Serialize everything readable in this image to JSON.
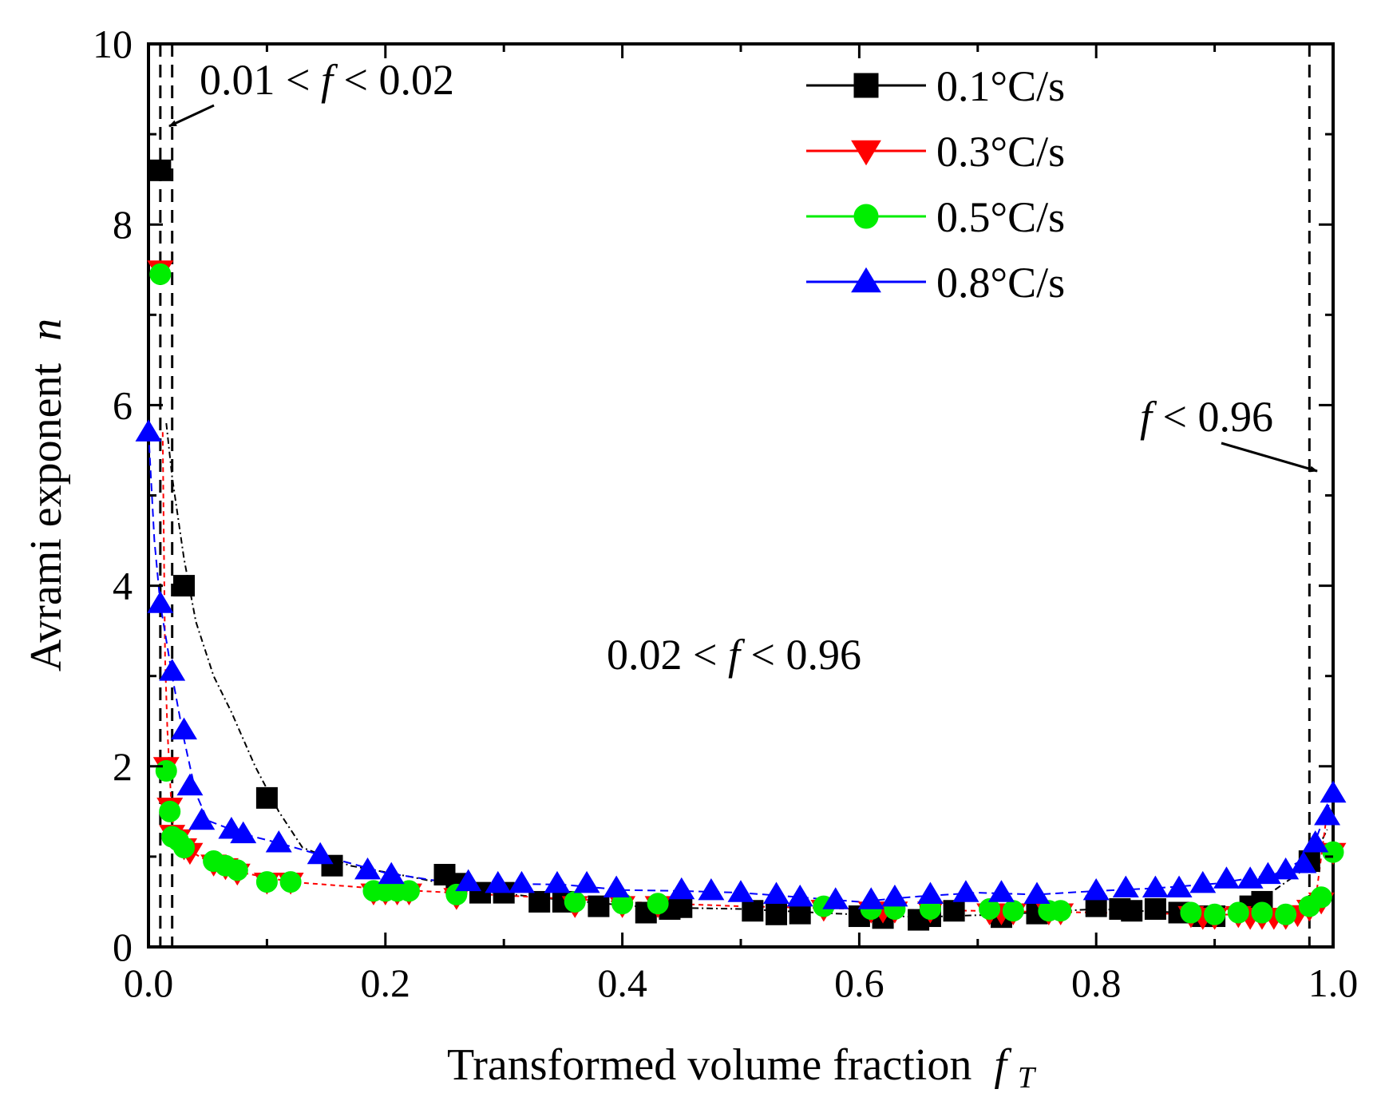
{
  "chart_data": {
    "type": "scatter",
    "xlabel": "Transformed volume fraction",
    "xlabel_symbol": "f",
    "xlabel_sub": "T",
    "ylabel": "Avrami exponent",
    "ylabel_symbol": "n",
    "xlim": [
      0.0,
      1.0
    ],
    "ylim": [
      0,
      10
    ],
    "x_ticks": [
      "0.0",
      "0.2",
      "0.4",
      "0.6",
      "0.8",
      "1.0"
    ],
    "y_ticks": [
      "0",
      "2",
      "4",
      "6",
      "8",
      "10"
    ],
    "grid": false,
    "legend_position": "top-right",
    "vlines": [
      0.01,
      0.02,
      0.98
    ],
    "annotations": [
      {
        "id": "a1",
        "pre": "0.01 < ",
        "sym": "f",
        "post": " < 0.02"
      },
      {
        "id": "a2",
        "pre": "0.02 < ",
        "sym": "f",
        "post": " < 0.96"
      },
      {
        "id": "a3",
        "pre": "",
        "sym": "f",
        "post": " < 0.96"
      }
    ],
    "series": [
      {
        "name": "0.1°C/s",
        "color": "#000000",
        "marker": "square",
        "points": [
          [
            0.01,
            8.6
          ],
          [
            0.03,
            4.0
          ],
          [
            0.1,
            1.65
          ],
          [
            0.155,
            0.9
          ],
          [
            0.25,
            0.8
          ],
          [
            0.26,
            0.7
          ],
          [
            0.28,
            0.6
          ],
          [
            0.3,
            0.6
          ],
          [
            0.33,
            0.5
          ],
          [
            0.35,
            0.5
          ],
          [
            0.38,
            0.45
          ],
          [
            0.42,
            0.38
          ],
          [
            0.44,
            0.42
          ],
          [
            0.45,
            0.44
          ],
          [
            0.51,
            0.4
          ],
          [
            0.53,
            0.36
          ],
          [
            0.55,
            0.37
          ],
          [
            0.6,
            0.34
          ],
          [
            0.62,
            0.32
          ],
          [
            0.65,
            0.3
          ],
          [
            0.66,
            0.34
          ],
          [
            0.68,
            0.4
          ],
          [
            0.72,
            0.33
          ],
          [
            0.75,
            0.37
          ],
          [
            0.8,
            0.45
          ],
          [
            0.82,
            0.42
          ],
          [
            0.83,
            0.4
          ],
          [
            0.85,
            0.42
          ],
          [
            0.87,
            0.38
          ],
          [
            0.89,
            0.34
          ],
          [
            0.9,
            0.34
          ],
          [
            0.93,
            0.45
          ],
          [
            0.94,
            0.5
          ],
          [
            0.98,
            0.95
          ]
        ],
        "curve": [
          [
            0.015,
            5.8
          ],
          [
            0.02,
            5.2
          ],
          [
            0.03,
            4.3
          ],
          [
            0.04,
            3.6
          ],
          [
            0.055,
            3.0
          ],
          [
            0.07,
            2.6
          ],
          [
            0.09,
            2.0
          ],
          [
            0.11,
            1.5
          ],
          [
            0.13,
            1.1
          ],
          [
            0.17,
            0.9
          ],
          [
            0.22,
            0.78
          ],
          [
            0.28,
            0.62
          ],
          [
            0.35,
            0.52
          ],
          [
            0.42,
            0.44
          ],
          [
            0.5,
            0.42
          ],
          [
            0.58,
            0.37
          ],
          [
            0.65,
            0.33
          ],
          [
            0.72,
            0.36
          ],
          [
            0.8,
            0.42
          ],
          [
            0.87,
            0.38
          ],
          [
            0.93,
            0.44
          ],
          [
            0.98,
            0.9
          ],
          [
            0.995,
            1.3
          ]
        ]
      },
      {
        "name": "0.3°C/s",
        "color": "#ff0000",
        "marker": "triangle-down",
        "points": [
          [
            0.01,
            7.5
          ],
          [
            0.015,
            2.0
          ],
          [
            0.018,
            1.55
          ],
          [
            0.02,
            1.25
          ],
          [
            0.025,
            1.2
          ],
          [
            0.03,
            1.1
          ],
          [
            0.035,
            1.05
          ],
          [
            0.055,
            0.92
          ],
          [
            0.065,
            0.88
          ],
          [
            0.075,
            0.82
          ],
          [
            0.1,
            0.72
          ],
          [
            0.12,
            0.72
          ],
          [
            0.19,
            0.6
          ],
          [
            0.2,
            0.6
          ],
          [
            0.21,
            0.6
          ],
          [
            0.22,
            0.6
          ],
          [
            0.26,
            0.55
          ],
          [
            0.36,
            0.46
          ],
          [
            0.4,
            0.46
          ],
          [
            0.43,
            0.46
          ],
          [
            0.57,
            0.42
          ],
          [
            0.61,
            0.4
          ],
          [
            0.62,
            0.4
          ],
          [
            0.63,
            0.4
          ],
          [
            0.66,
            0.4
          ],
          [
            0.71,
            0.38
          ],
          [
            0.72,
            0.38
          ],
          [
            0.73,
            0.38
          ],
          [
            0.76,
            0.38
          ],
          [
            0.77,
            0.38
          ],
          [
            0.88,
            0.35
          ],
          [
            0.89,
            0.33
          ],
          [
            0.9,
            0.33
          ],
          [
            0.92,
            0.35
          ],
          [
            0.93,
            0.33
          ],
          [
            0.94,
            0.33
          ],
          [
            0.95,
            0.33
          ],
          [
            0.96,
            0.33
          ],
          [
            0.97,
            0.36
          ],
          [
            0.98,
            0.42
          ],
          [
            0.99,
            0.5
          ],
          [
            1.0,
            1.05
          ]
        ],
        "curve": [
          [
            0.012,
            5.7
          ],
          [
            0.014,
            3.2
          ],
          [
            0.016,
            2.4
          ],
          [
            0.02,
            1.4
          ],
          [
            0.03,
            1.1
          ],
          [
            0.05,
            0.95
          ],
          [
            0.08,
            0.82
          ],
          [
            0.12,
            0.72
          ],
          [
            0.2,
            0.64
          ],
          [
            0.3,
            0.57
          ],
          [
            0.4,
            0.5
          ],
          [
            0.5,
            0.45
          ],
          [
            0.6,
            0.42
          ],
          [
            0.7,
            0.4
          ],
          [
            0.8,
            0.38
          ],
          [
            0.9,
            0.36
          ],
          [
            0.96,
            0.35
          ],
          [
            0.985,
            0.5
          ],
          [
            0.995,
            1.5
          ]
        ]
      },
      {
        "name": "0.5°C/s",
        "color": "#00ee00",
        "marker": "circle",
        "points": [
          [
            0.01,
            7.45
          ],
          [
            0.015,
            1.95
          ],
          [
            0.018,
            1.5
          ],
          [
            0.02,
            1.22
          ],
          [
            0.025,
            1.18
          ],
          [
            0.03,
            1.1
          ],
          [
            0.055,
            0.95
          ],
          [
            0.065,
            0.9
          ],
          [
            0.075,
            0.85
          ],
          [
            0.1,
            0.72
          ],
          [
            0.12,
            0.72
          ],
          [
            0.19,
            0.62
          ],
          [
            0.2,
            0.62
          ],
          [
            0.21,
            0.62
          ],
          [
            0.22,
            0.62
          ],
          [
            0.26,
            0.58
          ],
          [
            0.36,
            0.5
          ],
          [
            0.4,
            0.48
          ],
          [
            0.43,
            0.48
          ],
          [
            0.57,
            0.45
          ],
          [
            0.61,
            0.42
          ],
          [
            0.63,
            0.42
          ],
          [
            0.66,
            0.42
          ],
          [
            0.71,
            0.42
          ],
          [
            0.73,
            0.4
          ],
          [
            0.76,
            0.4
          ],
          [
            0.77,
            0.4
          ],
          [
            0.88,
            0.38
          ],
          [
            0.9,
            0.36
          ],
          [
            0.92,
            0.38
          ],
          [
            0.94,
            0.38
          ],
          [
            0.96,
            0.36
          ],
          [
            0.98,
            0.45
          ],
          [
            0.99,
            0.55
          ],
          [
            1.0,
            1.05
          ]
        ],
        "curve": []
      },
      {
        "name": "0.8°C/s",
        "color": "#0000ff",
        "marker": "triangle-up",
        "points": [
          [
            0.0,
            5.7
          ],
          [
            0.01,
            3.8
          ],
          [
            0.02,
            3.05
          ],
          [
            0.03,
            2.4
          ],
          [
            0.035,
            1.78
          ],
          [
            0.045,
            1.4
          ],
          [
            0.07,
            1.3
          ],
          [
            0.08,
            1.25
          ],
          [
            0.11,
            1.15
          ],
          [
            0.145,
            1.02
          ],
          [
            0.185,
            0.85
          ],
          [
            0.205,
            0.8
          ],
          [
            0.27,
            0.72
          ],
          [
            0.295,
            0.7
          ],
          [
            0.315,
            0.7
          ],
          [
            0.345,
            0.7
          ],
          [
            0.37,
            0.7
          ],
          [
            0.395,
            0.65
          ],
          [
            0.45,
            0.63
          ],
          [
            0.475,
            0.62
          ],
          [
            0.5,
            0.6
          ],
          [
            0.53,
            0.58
          ],
          [
            0.55,
            0.55
          ],
          [
            0.58,
            0.52
          ],
          [
            0.61,
            0.52
          ],
          [
            0.63,
            0.55
          ],
          [
            0.66,
            0.58
          ],
          [
            0.69,
            0.6
          ],
          [
            0.72,
            0.6
          ],
          [
            0.75,
            0.58
          ],
          [
            0.8,
            0.62
          ],
          [
            0.825,
            0.65
          ],
          [
            0.85,
            0.65
          ],
          [
            0.87,
            0.65
          ],
          [
            0.89,
            0.7
          ],
          [
            0.91,
            0.75
          ],
          [
            0.93,
            0.75
          ],
          [
            0.945,
            0.8
          ],
          [
            0.96,
            0.85
          ],
          [
            0.975,
            0.92
          ],
          [
            0.985,
            1.15
          ],
          [
            0.995,
            1.45
          ],
          [
            1.0,
            1.7
          ]
        ],
        "curve": [
          [
            0.0,
            5.7
          ],
          [
            0.005,
            4.5
          ],
          [
            0.01,
            3.8
          ],
          [
            0.02,
            3.0
          ],
          [
            0.03,
            2.3
          ],
          [
            0.04,
            1.7
          ],
          [
            0.05,
            1.4
          ],
          [
            0.08,
            1.25
          ],
          [
            0.11,
            1.15
          ],
          [
            0.15,
            1.0
          ],
          [
            0.2,
            0.82
          ],
          [
            0.25,
            0.72
          ],
          [
            0.3,
            0.7
          ],
          [
            0.35,
            0.69
          ],
          [
            0.4,
            0.63
          ],
          [
            0.45,
            0.62
          ],
          [
            0.5,
            0.6
          ],
          [
            0.55,
            0.55
          ],
          [
            0.6,
            0.5
          ],
          [
            0.65,
            0.56
          ],
          [
            0.7,
            0.6
          ],
          [
            0.75,
            0.58
          ],
          [
            0.8,
            0.62
          ],
          [
            0.85,
            0.65
          ],
          [
            0.9,
            0.7
          ],
          [
            0.95,
            0.8
          ],
          [
            0.98,
            1.0
          ],
          [
            1.0,
            1.7
          ]
        ]
      }
    ]
  }
}
